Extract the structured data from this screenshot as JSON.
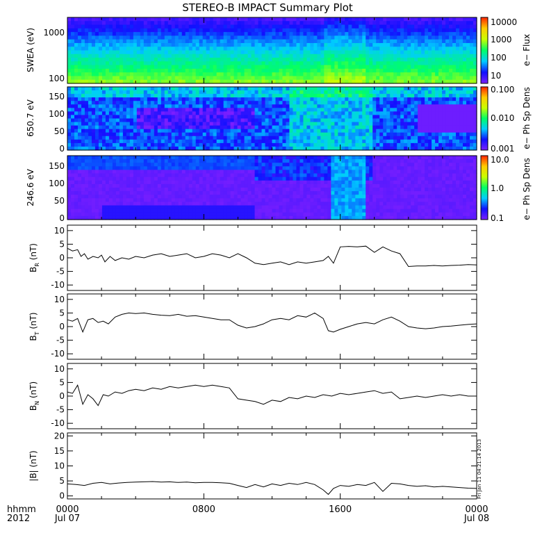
{
  "title": "STEREO-B IMPACT Summary Plot",
  "stamp": "Fri Jan 11 04:21:14 2013",
  "time_axis": {
    "row_labels": [
      "hhmm",
      "2012"
    ],
    "ticks": [
      {
        "label": "0000",
        "sub": "Jul 07",
        "hour": 0
      },
      {
        "label": "0800",
        "sub": "",
        "hour": 8
      },
      {
        "label": "1600",
        "sub": "",
        "hour": 16
      },
      {
        "label": "0000",
        "sub": "Jul 08",
        "hour": 24
      }
    ]
  },
  "spectrograms": [
    {
      "id": "swea",
      "ylabel": "SWEA (eV)",
      "yticks": [
        "1000",
        "100"
      ],
      "cbar_label": "e− Flux",
      "cbar_ticks": [
        "10000",
        "1000",
        "100",
        "10"
      ]
    },
    {
      "id": "pad650",
      "ylabel": "650.7 eV",
      "yticks": [
        "150",
        "100",
        "50",
        "0"
      ],
      "cbar_label": "e− Ph Sp Dens",
      "cbar_ticks": [
        "0.100",
        "0.010",
        "0.001"
      ]
    },
    {
      "id": "pad246",
      "ylabel": "246.6 eV",
      "yticks": [
        "150",
        "100",
        "50",
        "0"
      ],
      "cbar_label": "e− Ph Sp Dens",
      "cbar_ticks": [
        "10.0",
        "1.0",
        "0.1"
      ]
    }
  ],
  "chart_data": [
    {
      "type": "line",
      "id": "br",
      "ylabel_main": "B",
      "ylabel_sub": "R",
      "ylabel_unit": " (nT)",
      "ylim": [
        -12,
        12
      ],
      "yticks": [
        "10",
        "5",
        "0",
        "-5",
        "-10"
      ],
      "ytick_values": [
        10,
        5,
        0,
        -5,
        -10
      ],
      "x": [
        0,
        0.3,
        0.6,
        0.8,
        1.0,
        1.2,
        1.5,
        1.8,
        2.0,
        2.2,
        2.5,
        2.8,
        3.2,
        3.6,
        4.0,
        4.5,
        5.0,
        5.5,
        6.0,
        6.5,
        7.0,
        7.5,
        8.0,
        8.5,
        9.0,
        9.5,
        10.0,
        10.5,
        11.0,
        11.5,
        12.0,
        12.5,
        13.0,
        13.5,
        14.0,
        14.5,
        15.0,
        15.3,
        15.6,
        16.0,
        16.5,
        17.0,
        17.5,
        18.0,
        18.5,
        19.0,
        19.5,
        20.0,
        20.5,
        21.0,
        21.5,
        22.0,
        22.5,
        23.0,
        23.5,
        24.0
      ],
      "y": [
        3.5,
        2.5,
        3.0,
        0.5,
        1.5,
        -0.5,
        0.5,
        0.0,
        1.0,
        -1.5,
        0.5,
        -1.0,
        0.0,
        -0.5,
        0.5,
        0.0,
        1.0,
        1.5,
        0.5,
        1.0,
        1.5,
        0.0,
        0.5,
        1.5,
        1.0,
        0.0,
        1.5,
        0.0,
        -2.0,
        -2.5,
        -2.0,
        -1.5,
        -2.5,
        -1.5,
        -2.0,
        -1.5,
        -1.0,
        0.5,
        -2.0,
        4.0,
        4.2,
        4.0,
        4.3,
        2.0,
        4.0,
        2.5,
        1.5,
        -3.2,
        -3.0,
        -3.0,
        -2.8,
        -3.0,
        -2.8,
        -2.7,
        -2.5,
        -2.6
      ]
    },
    {
      "type": "line",
      "id": "bt",
      "ylabel_main": "B",
      "ylabel_sub": "T",
      "ylabel_unit": " (nT)",
      "ylim": [
        -12,
        12
      ],
      "yticks": [
        "10",
        "5",
        "0",
        "-5",
        "-10"
      ],
      "ytick_values": [
        10,
        5,
        0,
        -5,
        -10
      ],
      "x": [
        0,
        0.3,
        0.6,
        0.9,
        1.2,
        1.5,
        1.8,
        2.1,
        2.4,
        2.8,
        3.2,
        3.6,
        4.0,
        4.5,
        5.0,
        5.5,
        6.0,
        6.5,
        7.0,
        7.5,
        8.0,
        8.5,
        9.0,
        9.5,
        10.0,
        10.5,
        11.0,
        11.5,
        12.0,
        12.5,
        13.0,
        13.5,
        14.0,
        14.5,
        15.0,
        15.3,
        15.6,
        16.0,
        16.5,
        17.0,
        17.5,
        18.0,
        18.5,
        19.0,
        19.5,
        20.0,
        20.5,
        21.0,
        21.5,
        22.0,
        22.5,
        23.0,
        23.5,
        24.0
      ],
      "y": [
        2.5,
        2.0,
        3.0,
        -2.0,
        2.5,
        3.0,
        1.5,
        2.0,
        1.0,
        3.5,
        4.5,
        5.0,
        4.8,
        5.0,
        4.5,
        4.2,
        4.0,
        4.5,
        3.8,
        4.0,
        3.5,
        3.0,
        2.5,
        2.5,
        0.5,
        -0.5,
        0.0,
        1.0,
        2.5,
        3.0,
        2.5,
        4.0,
        3.5,
        5.0,
        3.0,
        -1.5,
        -2.0,
        -1.0,
        0.0,
        1.0,
        1.5,
        1.0,
        2.5,
        3.5,
        2.0,
        0.0,
        -0.5,
        -0.8,
        -0.5,
        0.0,
        0.2,
        0.5,
        0.8,
        1.0
      ]
    },
    {
      "type": "line",
      "id": "bn",
      "ylabel_main": "B",
      "ylabel_sub": "N",
      "ylabel_unit": " (nT)",
      "ylim": [
        -12,
        12
      ],
      "yticks": [
        "10",
        "5",
        "0",
        "-5",
        "-10"
      ],
      "ytick_values": [
        10,
        5,
        0,
        -5,
        -10
      ],
      "x": [
        0,
        0.3,
        0.6,
        0.9,
        1.2,
        1.5,
        1.8,
        2.1,
        2.4,
        2.8,
        3.2,
        3.6,
        4.0,
        4.5,
        5.0,
        5.5,
        6.0,
        6.5,
        7.0,
        7.5,
        8.0,
        8.5,
        9.0,
        9.5,
        10.0,
        10.5,
        11.0,
        11.5,
        12.0,
        12.5,
        13.0,
        13.5,
        14.0,
        14.5,
        15.0,
        15.5,
        16.0,
        16.5,
        17.0,
        17.5,
        18.0,
        18.5,
        19.0,
        19.5,
        20.0,
        20.5,
        21.0,
        21.5,
        22.0,
        22.5,
        23.0,
        23.5,
        24.0
      ],
      "y": [
        1.5,
        1.0,
        4.0,
        -3.0,
        0.5,
        -1.0,
        -3.5,
        0.5,
        0.0,
        1.5,
        1.0,
        2.0,
        2.5,
        2.0,
        3.0,
        2.5,
        3.5,
        3.0,
        3.5,
        4.0,
        3.5,
        4.0,
        3.5,
        3.0,
        -1.0,
        -1.5,
        -2.0,
        -3.0,
        -1.5,
        -2.0,
        -0.5,
        -1.0,
        0.0,
        -0.5,
        0.5,
        0.0,
        1.0,
        0.5,
        1.0,
        1.5,
        2.0,
        1.0,
        1.5,
        -1.0,
        -0.5,
        0.0,
        -0.5,
        0.0,
        0.5,
        0.0,
        0.5,
        0.0,
        0.0
      ]
    },
    {
      "type": "line",
      "id": "bmag",
      "ylabel_main": "|B|",
      "ylabel_sub": "",
      "ylabel_unit": " (nT)",
      "ylim": [
        -1,
        21
      ],
      "yticks": [
        "20",
        "15",
        "10",
        "5",
        "0"
      ],
      "ytick_values": [
        20,
        15,
        10,
        5,
        0
      ],
      "x": [
        0,
        0.5,
        1.0,
        1.5,
        2.0,
        2.5,
        3.0,
        3.5,
        4.0,
        4.5,
        5.0,
        5.5,
        6.0,
        6.5,
        7.0,
        7.5,
        8.0,
        8.5,
        9.0,
        9.5,
        10.0,
        10.5,
        11.0,
        11.5,
        12.0,
        12.5,
        13.0,
        13.5,
        14.0,
        14.5,
        15.0,
        15.3,
        15.6,
        16.0,
        16.5,
        17.0,
        17.5,
        18.0,
        18.5,
        19.0,
        19.5,
        20.0,
        20.5,
        21.0,
        21.5,
        22.0,
        22.5,
        23.0,
        23.5,
        24.0
      ],
      "y": [
        4.0,
        3.8,
        3.5,
        4.2,
        4.5,
        4.0,
        4.3,
        4.5,
        4.6,
        4.7,
        4.8,
        4.6,
        4.7,
        4.5,
        4.6,
        4.4,
        4.5,
        4.5,
        4.4,
        4.2,
        3.5,
        2.8,
        3.8,
        3.0,
        4.0,
        3.5,
        4.2,
        3.8,
        4.5,
        3.8,
        2.0,
        0.5,
        2.5,
        3.5,
        3.2,
        3.8,
        3.5,
        4.5,
        1.5,
        4.2,
        4.0,
        3.5,
        3.2,
        3.4,
        3.0,
        3.2,
        3.0,
        2.8,
        2.6,
        2.5
      ]
    }
  ],
  "colors": {
    "cmap": [
      "#7a1fff",
      "#1010ff",
      "#00ccff",
      "#00ff66",
      "#c8ff00",
      "#ffcc00",
      "#ff2200"
    ],
    "line": "#000000"
  }
}
